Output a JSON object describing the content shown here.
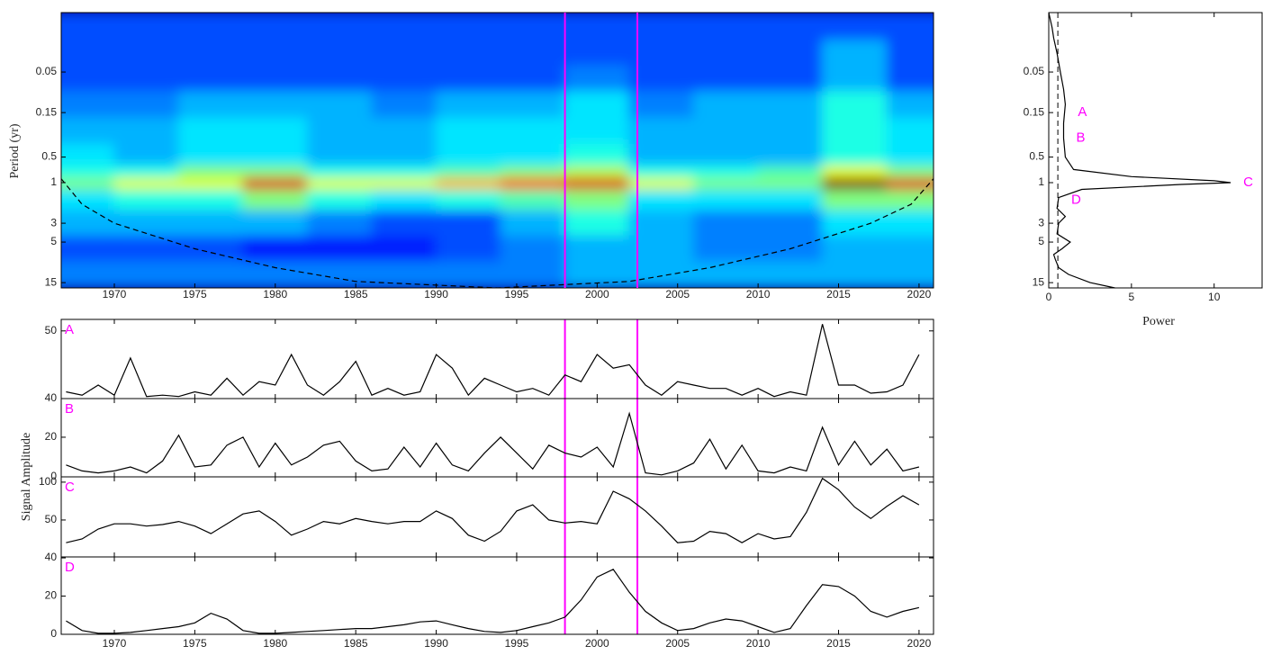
{
  "chart_data": [
    {
      "type": "heatmap",
      "ylabel": "Period (yr)",
      "log_y": true,
      "y_inverted": true,
      "colormap": "jet",
      "x": [
        1968,
        1972,
        1976,
        1980,
        1984,
        1988,
        1992,
        1996,
        2000,
        2004,
        2008,
        2012,
        2016,
        2020
      ],
      "periods": [
        0.015,
        0.03,
        0.06,
        0.12,
        0.25,
        0.5,
        0.8,
        1,
        1.5,
        3,
        6,
        12
      ],
      "power": [
        [
          2,
          2,
          2,
          2,
          2,
          2,
          2,
          2,
          2,
          2,
          2,
          2,
          2,
          2
        ],
        [
          2,
          2,
          2,
          2,
          2,
          2,
          2,
          2,
          2,
          2,
          2,
          2,
          3,
          2
        ],
        [
          2,
          2,
          2,
          2,
          2,
          2,
          2,
          2,
          2.5,
          2,
          2,
          2,
          3,
          2
        ],
        [
          2.5,
          2.5,
          3,
          3,
          3,
          2.5,
          3,
          3,
          3.5,
          2.5,
          3,
          3,
          4,
          3
        ],
        [
          3,
          3,
          3.5,
          3.5,
          3,
          3,
          3.5,
          3.5,
          3.5,
          3,
          3,
          3,
          4,
          3.5
        ],
        [
          3.5,
          3,
          3.5,
          3.5,
          3,
          3,
          3.5,
          3.5,
          4,
          3,
          3,
          3,
          4,
          3.5
        ],
        [
          4,
          4,
          5,
          5,
          4,
          4,
          4.5,
          5,
          5.5,
          4,
          4,
          4.5,
          6,
          5
        ],
        [
          5,
          6,
          6,
          9,
          6,
          6,
          7,
          8,
          9,
          6,
          5,
          5,
          10,
          9
        ],
        [
          3.5,
          4,
          4,
          5,
          4,
          3.5,
          4,
          4.5,
          5,
          3.5,
          3.5,
          3.5,
          5,
          5
        ],
        [
          3,
          3,
          3,
          3,
          2.5,
          2,
          2,
          3,
          4,
          3,
          2.5,
          2.5,
          3.5,
          3.5
        ],
        [
          2,
          2,
          2,
          1.5,
          1.5,
          1.5,
          2,
          2.5,
          3,
          3,
          2.5,
          2.5,
          3,
          3
        ],
        [
          2.5,
          2.5,
          2.5,
          2.5,
          2.5,
          2.5,
          2.5,
          2.5,
          3,
          3,
          3,
          3,
          3,
          3
        ]
      ],
      "clim": [
        0,
        10
      ],
      "coi_x": [
        1966.7,
        1968,
        1970,
        1975,
        1980,
        1985,
        1993.8,
        2002,
        2007,
        2012,
        2017,
        2019.5,
        2020.9
      ],
      "coi_period": [
        0.9,
        1.8,
        3,
        6,
        10,
        14.5,
        17.3,
        14.5,
        10,
        6,
        3,
        1.8,
        0.9
      ],
      "markers": [
        1998,
        2002.5
      ],
      "marker_color": "#ff00ff",
      "xlim": [
        1966.7,
        2020.9
      ],
      "xticks": [
        1970,
        1975,
        1980,
        1985,
        1990,
        1995,
        2000,
        2005,
        2010,
        2015,
        2020
      ],
      "ylim": [
        0.01,
        17.3
      ],
      "yticks": [
        0.05,
        0.15,
        0.5,
        1,
        3,
        5,
        15
      ]
    },
    {
      "type": "line",
      "orientation": "horizontal",
      "xlabel": "Power",
      "log_y": true,
      "y_inverted": true,
      "periods": [
        0.01,
        0.015,
        0.02,
        0.03,
        0.05,
        0.08,
        0.12,
        0.2,
        0.3,
        0.5,
        0.7,
        0.85,
        0.95,
        1,
        1.05,
        1.2,
        1.5,
        2,
        2.5,
        3,
        4,
        5,
        6,
        7,
        8,
        10,
        12,
        15,
        17.3
      ],
      "values": [
        0,
        0.2,
        0.3,
        0.5,
        0.7,
        0.9,
        1.0,
        0.9,
        0.9,
        1.0,
        1.5,
        5,
        10,
        11,
        8,
        2,
        0.6,
        0.5,
        1,
        0.6,
        0.5,
        1.3,
        0.8,
        0.3,
        0.4,
        0.6,
        1.2,
        2.5,
        4
      ],
      "color": "#000000",
      "significance_level": 0.55,
      "bands": [
        {
          "label": "A",
          "period": 0.15
        },
        {
          "label": "B",
          "period": 0.3
        },
        {
          "label": "C",
          "period": 1
        },
        {
          "label": "D",
          "period": 1.6
        }
      ],
      "band_color": "#ff00ff",
      "xlim": [
        0,
        12.9
      ],
      "xticks": [
        0,
        5,
        10
      ],
      "ylim": [
        0.01,
        17.3
      ],
      "yticks": [
        0.05,
        0.15,
        0.5,
        1,
        3,
        5,
        15
      ]
    },
    {
      "type": "line",
      "color": "#000000",
      "x": [
        1967,
        1968,
        1969,
        1970,
        1971,
        1972,
        1973,
        1974,
        1975,
        1976,
        1977,
        1978,
        1979,
        1980,
        1981,
        1982,
        1983,
        1984,
        1985,
        1986,
        1987,
        1988,
        1989,
        1990,
        1991,
        1992,
        1993,
        1994,
        1995,
        1996,
        1997,
        1998,
        1999,
        2000,
        2001,
        2002,
        2003,
        2004,
        2005,
        2006,
        2007,
        2008,
        2009,
        2010,
        2011,
        2012,
        2013,
        2014,
        2015,
        2016,
        2017,
        2018,
        2019,
        2020
      ],
      "values": [
        41,
        40.5,
        42,
        40.5,
        46,
        40.3,
        40.5,
        40.3,
        41,
        40.5,
        43,
        40.5,
        42.5,
        42,
        46.5,
        42,
        40.5,
        42.5,
        45.5,
        40.5,
        41.5,
        40.5,
        41,
        46.5,
        44.5,
        40.5,
        43,
        42,
        41,
        41.5,
        40.5,
        43.5,
        42.5,
        46.5,
        44.5,
        45,
        42,
        40.5,
        42.5,
        42,
        41.5,
        41.5,
        40.5,
        41.5,
        40.3,
        41,
        40.5,
        51,
        42,
        42,
        40.8,
        41,
        42,
        46.5
      ],
      "xlim": [
        1966.7,
        2020.9
      ],
      "ylim": [
        40,
        51.7
      ],
      "yticks": [
        40,
        50
      ]
    },
    {
      "type": "line",
      "color": "#000000",
      "ylabel": "Signal Amplitude",
      "x": [
        1967,
        1968,
        1969,
        1970,
        1971,
        1972,
        1973,
        1974,
        1975,
        1976,
        1977,
        1978,
        1979,
        1980,
        1981,
        1982,
        1983,
        1984,
        1985,
        1986,
        1987,
        1988,
        1989,
        1990,
        1991,
        1992,
        1993,
        1994,
        1995,
        1996,
        1997,
        1998,
        1999,
        2000,
        2001,
        2002,
        2003,
        2004,
        2005,
        2006,
        2007,
        2008,
        2009,
        2010,
        2011,
        2012,
        2013,
        2014,
        2015,
        2016,
        2017,
        2018,
        2019,
        2020
      ],
      "values": [
        6,
        3,
        2,
        3,
        5,
        2,
        8,
        21,
        5,
        6,
        16,
        20,
        5,
        17,
        6,
        10,
        16,
        18,
        8,
        3,
        4,
        15,
        5,
        17,
        6,
        3,
        12,
        20,
        12,
        4,
        16,
        12,
        10,
        15,
        5,
        32,
        2,
        1,
        3,
        7,
        19,
        4,
        16,
        3,
        2,
        5,
        3,
        25,
        6,
        18,
        6,
        14,
        3,
        5
      ],
      "xlim": [
        1966.7,
        2020.9
      ],
      "ylim": [
        0,
        39.5
      ],
      "yticks": [
        0,
        20
      ]
    },
    {
      "type": "line",
      "color": "#000000",
      "x": [
        1967,
        1968,
        1969,
        1970,
        1971,
        1972,
        1973,
        1974,
        1975,
        1976,
        1977,
        1978,
        1979,
        1980,
        1981,
        1982,
        1983,
        1984,
        1985,
        1986,
        1987,
        1988,
        1989,
        1990,
        1991,
        1992,
        1993,
        1994,
        1995,
        1996,
        1997,
        1998,
        1999,
        2000,
        2001,
        2002,
        2003,
        2004,
        2005,
        2006,
        2007,
        2008,
        2009,
        2010,
        2011,
        2012,
        2013,
        2014,
        2015,
        2016,
        2017,
        2018,
        2019,
        2020
      ],
      "values": [
        20,
        25,
        38,
        45,
        45,
        42,
        44,
        48,
        42,
        32,
        45,
        58,
        62,
        48,
        30,
        38,
        48,
        45,
        52,
        48,
        45,
        48,
        48,
        62,
        52,
        30,
        22,
        35,
        62,
        70,
        50,
        46,
        48,
        45,
        88,
        78,
        62,
        42,
        20,
        22,
        35,
        32,
        20,
        32,
        25,
        28,
        60,
        105,
        90,
        67,
        52,
        68,
        82,
        70
      ],
      "xlim": [
        1966.7,
        2020.9
      ],
      "ylim": [
        1.2,
        107
      ],
      "yticks": [
        50,
        100
      ]
    },
    {
      "type": "line",
      "color": "#000000",
      "x": [
        1967,
        1968,
        1969,
        1970,
        1971,
        1972,
        1973,
        1974,
        1975,
        1976,
        1977,
        1978,
        1979,
        1980,
        1981,
        1982,
        1983,
        1984,
        1985,
        1986,
        1987,
        1988,
        1989,
        1990,
        1991,
        1992,
        1993,
        1994,
        1995,
        1996,
        1997,
        1998,
        1999,
        2000,
        2001,
        2002,
        2003,
        2004,
        2005,
        2006,
        2007,
        2008,
        2009,
        2010,
        2011,
        2012,
        2013,
        2014,
        2015,
        2016,
        2017,
        2018,
        2019,
        2020
      ],
      "values": [
        7,
        2,
        0.5,
        0.5,
        1,
        2,
        3,
        4,
        6,
        11,
        8,
        2,
        0.5,
        0.5,
        1,
        1.5,
        2,
        2.5,
        3,
        3,
        4,
        5,
        6.5,
        7,
        5,
        3,
        1.5,
        1,
        2,
        4,
        6,
        9,
        18,
        30,
        34,
        22,
        12,
        6,
        2,
        3,
        6,
        8,
        7,
        4,
        1,
        3,
        15,
        26,
        25,
        20,
        12,
        9,
        12,
        14
      ],
      "xlim": [
        1966.7,
        2020.9
      ],
      "xticks": [
        1970,
        1975,
        1980,
        1985,
        1990,
        1995,
        2000,
        2005,
        2010,
        2015,
        2020
      ],
      "ylim": [
        0,
        40.5
      ],
      "yticks": [
        0,
        20,
        40
      ]
    }
  ]
}
